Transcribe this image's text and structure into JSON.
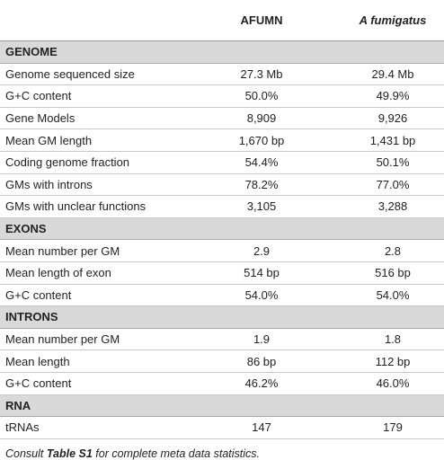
{
  "table": {
    "columns": [
      "AFUMN",
      "A fumigatus"
    ],
    "sections": [
      {
        "title": "GENOME",
        "rows": [
          [
            "Genome sequenced size",
            "27.3 Mb",
            "29.4 Mb"
          ],
          [
            "G+C content",
            "50.0%",
            "49.9%"
          ],
          [
            "Gene Models",
            "8,909",
            "9,926"
          ],
          [
            "Mean GM length",
            "1,670 bp",
            "1,431 bp"
          ],
          [
            "Coding genome fraction",
            "54.4%",
            "50.1%"
          ],
          [
            "GMs with introns",
            "78.2%",
            "77.0%"
          ],
          [
            "GMs with unclear functions",
            "3,105",
            "3,288"
          ]
        ]
      },
      {
        "title": "EXONS",
        "rows": [
          [
            "Mean number per GM",
            "2.9",
            "2.8"
          ],
          [
            "Mean length of exon",
            "514 bp",
            "516 bp"
          ],
          [
            "G+C content",
            "54.0%",
            "54.0%"
          ]
        ]
      },
      {
        "title": "INTRONS",
        "rows": [
          [
            "Mean number per GM",
            "1.9",
            "1.8"
          ],
          [
            "Mean length",
            "86 bp",
            "112 bp"
          ],
          [
            "G+C content",
            "46.2%",
            "46.0%"
          ]
        ]
      },
      {
        "title": "RNA",
        "rows": [
          [
            "tRNAs",
            "147",
            "179"
          ]
        ]
      }
    ]
  },
  "footnote": {
    "prefix": "Consult ",
    "reference": "Table S1",
    "suffix": " for complete meta data statistics."
  }
}
